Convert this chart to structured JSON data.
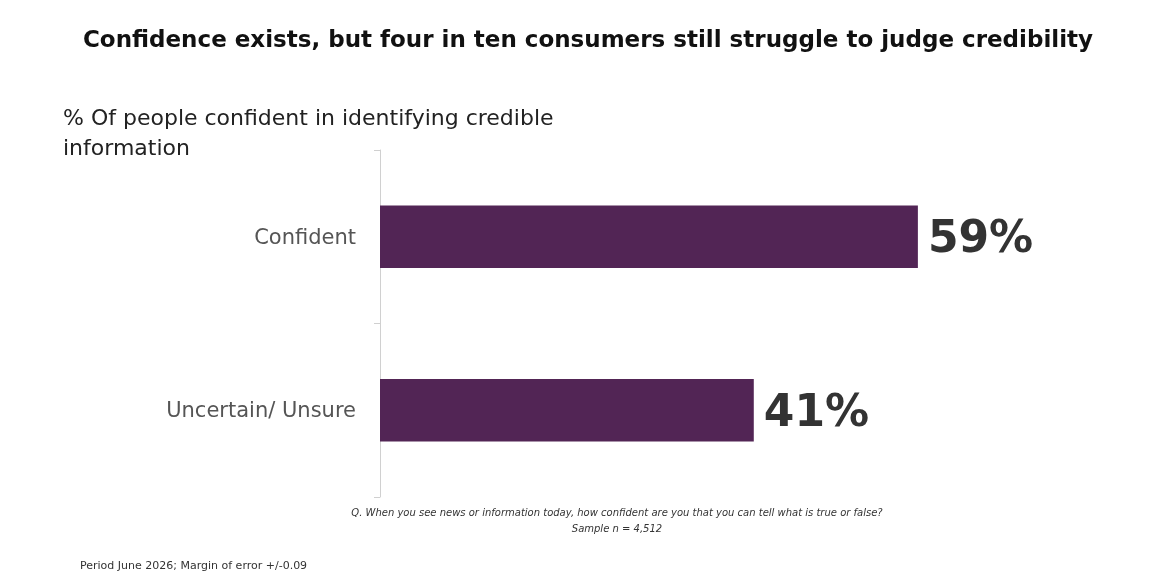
{
  "chart_data": {
    "type": "bar",
    "orientation": "horizontal",
    "title": "Confidence exists, but four in ten consumers still struggle to judge credibility",
    "ylabel": "% Of people confident in identifying credible information",
    "categories": [
      "Confident",
      "Uncertain/ Unsure"
    ],
    "values": [
      59,
      41
    ],
    "value_labels": [
      "59%",
      "41%"
    ],
    "color": "#522555",
    "annotations": [
      "Q. When you see news or information today, how confident are you that you can tell what is true or false?",
      "Sample n = 4,512",
      "Period June 2026; Margin of error +/-0.09"
    ]
  }
}
